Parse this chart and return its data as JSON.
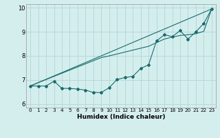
{
  "xlabel": "Humidex (Indice chaleur)",
  "bg_color": "#d4eeee",
  "grid_color": "#b8d8d8",
  "line_color": "#1a6b6b",
  "xlim": [
    -0.5,
    23.5
  ],
  "ylim": [
    5.85,
    10.15
  ],
  "xticks": [
    0,
    1,
    2,
    3,
    4,
    5,
    6,
    7,
    8,
    9,
    10,
    11,
    12,
    13,
    14,
    15,
    16,
    17,
    18,
    19,
    20,
    21,
    22,
    23
  ],
  "yticks": [
    6,
    7,
    8,
    9,
    10
  ],
  "line1_x": [
    0,
    1,
    2,
    3,
    4,
    5,
    6,
    7,
    8,
    9,
    10,
    11,
    12,
    13,
    14,
    15,
    16,
    17,
    18,
    19,
    20,
    21,
    22,
    23
  ],
  "line1_y": [
    6.75,
    6.75,
    6.75,
    6.95,
    6.65,
    6.65,
    6.62,
    6.58,
    6.48,
    6.48,
    6.68,
    7.02,
    7.1,
    7.15,
    7.48,
    7.63,
    8.62,
    8.88,
    8.8,
    9.05,
    8.7,
    9.0,
    9.35,
    9.95
  ],
  "line2_x": [
    0,
    1,
    2,
    3,
    4,
    5,
    6,
    7,
    8,
    9,
    10,
    11,
    12,
    13,
    14,
    15,
    16,
    17,
    18,
    19,
    20,
    21,
    22,
    23
  ],
  "line2_y": [
    6.75,
    6.89,
    7.02,
    7.15,
    7.28,
    7.41,
    7.54,
    7.67,
    7.8,
    7.93,
    8.0,
    8.08,
    8.16,
    8.24,
    8.32,
    8.4,
    8.55,
    8.7,
    8.78,
    8.85,
    8.88,
    8.92,
    9.02,
    9.95
  ],
  "line3_x": [
    0,
    23
  ],
  "line3_y": [
    6.75,
    9.95
  ]
}
